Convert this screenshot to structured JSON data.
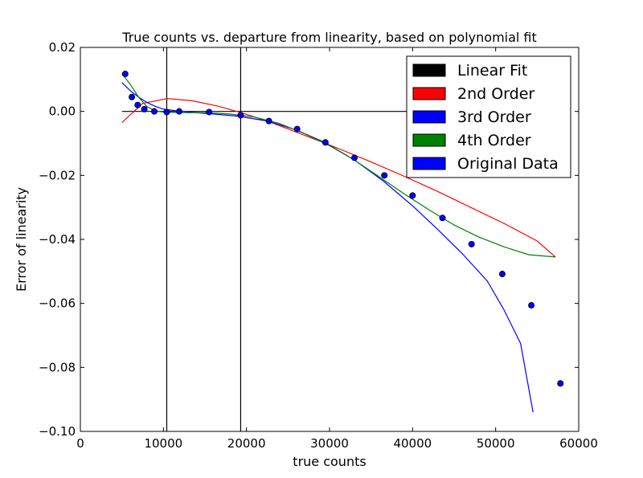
{
  "chart_data": {
    "type": "line",
    "title": "True counts vs. departure from linearity, based on polynomial fit",
    "xlabel": "true counts",
    "ylabel": "Error of linearity",
    "xlim": [
      0,
      60000
    ],
    "ylim": [
      -0.1,
      0.02
    ],
    "xticks": [
      0,
      10000,
      20000,
      30000,
      40000,
      50000,
      60000
    ],
    "xtick_labels": [
      "0",
      "10000",
      "20000",
      "30000",
      "40000",
      "50000",
      "60000"
    ],
    "yticks": [
      0.02,
      0.0,
      -0.02,
      -0.04,
      -0.06,
      -0.08,
      -0.1
    ],
    "ytick_labels": [
      "0.02",
      "0.00",
      "−0.02",
      "−0.04",
      "−0.06",
      "−0.08",
      "−0.10"
    ],
    "grid": false,
    "legend_position": "top-right",
    "vertical_lines": [
      10400,
      19300
    ],
    "series": [
      {
        "name": "Linear Fit",
        "kind": "line",
        "color": "#000000",
        "x": [
          5000,
          57200
        ],
        "y": [
          0.0,
          0.0
        ]
      },
      {
        "name": "2nd Order",
        "kind": "line",
        "color": "#ff0000",
        "x": [
          5000,
          7500,
          10500,
          13500,
          16500,
          19500,
          23000,
          27000,
          31000,
          35000,
          39000,
          43000,
          47000,
          51000,
          55000,
          57200
        ],
        "y": [
          -0.0035,
          0.0025,
          0.004,
          0.0033,
          0.0017,
          -0.0005,
          -0.0035,
          -0.0075,
          -0.0115,
          -0.0158,
          -0.0203,
          -0.025,
          -0.03,
          -0.035,
          -0.0405,
          -0.0455
        ]
      },
      {
        "name": "3rd Order",
        "kind": "line",
        "color": "#0000ff",
        "x": [
          5000,
          6000,
          7000,
          8000,
          9000,
          10000,
          11500,
          13500,
          16000,
          19000,
          22500,
          26000,
          29500,
          33000,
          36500,
          40000,
          43000,
          46000,
          49000,
          51000,
          53000,
          54500
        ],
        "y": [
          0.009,
          0.0065,
          0.0045,
          0.0028,
          0.0016,
          0.0007,
          0.0002,
          -0.0003,
          -0.0008,
          -0.0015,
          -0.003,
          -0.0058,
          -0.0098,
          -0.0152,
          -0.0218,
          -0.0295,
          -0.0368,
          -0.0445,
          -0.053,
          -0.062,
          -0.0725,
          -0.094
        ]
      },
      {
        "name": "4th Order",
        "kind": "line",
        "color": "#008000",
        "x": [
          5000,
          6000,
          7000,
          8000,
          9000,
          10000,
          12000,
          15000,
          18000,
          21000,
          24000,
          27000,
          30000,
          33000,
          36000,
          39000,
          42000,
          45000,
          48000,
          51000,
          54000,
          57200
        ],
        "y": [
          0.0118,
          0.0085,
          0.0045,
          0.0015,
          0.0002,
          -0.0002,
          -0.0004,
          -0.0004,
          -0.0008,
          -0.0018,
          -0.0038,
          -0.007,
          -0.0107,
          -0.0152,
          -0.0205,
          -0.0258,
          -0.0308,
          -0.0355,
          -0.0393,
          -0.0423,
          -0.0448,
          -0.0455
        ]
      },
      {
        "name": "Original Data",
        "kind": "scatter",
        "color": "#0000ff",
        "x": [
          5400,
          6200,
          6900,
          7700,
          8900,
          10400,
          11900,
          15500,
          19300,
          22700,
          26100,
          29500,
          33000,
          36600,
          40000,
          43600,
          47100,
          50800,
          54300,
          57800
        ],
        "y": [
          0.0117,
          0.0045,
          0.002,
          0.0007,
          0.0,
          -0.0002,
          0.0,
          -0.0002,
          -0.0012,
          -0.003,
          -0.0055,
          -0.0097,
          -0.0145,
          -0.02,
          -0.0263,
          -0.0333,
          -0.0415,
          -0.0508,
          -0.0606,
          -0.085
        ]
      }
    ]
  }
}
